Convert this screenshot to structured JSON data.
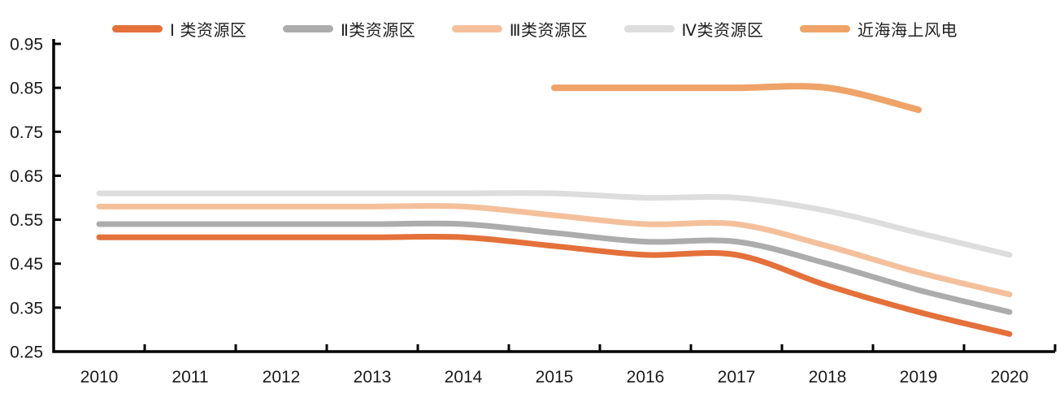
{
  "chart_data": {
    "type": "line",
    "title": "",
    "xlabel": "",
    "ylabel": "",
    "categories": [
      "2010",
      "2011",
      "2012",
      "2013",
      "2014",
      "2015",
      "2016",
      "2017",
      "2018",
      "2019",
      "2020"
    ],
    "series": [
      {
        "name": "Ⅰ 类资源区",
        "color": "#E4703A",
        "width": 7,
        "values": [
          0.51,
          0.51,
          0.51,
          0.51,
          0.51,
          0.49,
          0.47,
          0.47,
          0.4,
          0.34,
          0.29
        ]
      },
      {
        "name": "Ⅱ类资源区",
        "color": "#ACACAC",
        "width": 7,
        "values": [
          0.54,
          0.54,
          0.54,
          0.54,
          0.54,
          0.52,
          0.5,
          0.5,
          0.45,
          0.39,
          0.34
        ]
      },
      {
        "name": "Ⅲ类资源区",
        "color": "#F4C09B",
        "width": 7,
        "values": [
          0.58,
          0.58,
          0.58,
          0.58,
          0.58,
          0.56,
          0.54,
          0.54,
          0.49,
          0.43,
          0.38
        ]
      },
      {
        "name": "Ⅳ类资源区",
        "color": "#DDDDDD",
        "width": 7,
        "values": [
          0.61,
          0.61,
          0.61,
          0.61,
          0.61,
          0.61,
          0.6,
          0.6,
          0.57,
          0.52,
          0.47
        ]
      },
      {
        "name": "近海海上风电",
        "color": "#EFA368",
        "width": 8,
        "values": [
          null,
          null,
          null,
          null,
          null,
          0.85,
          0.85,
          0.85,
          0.85,
          0.8,
          null
        ]
      }
    ],
    "ylim": [
      0.25,
      0.95
    ],
    "yticks": [
      0.25,
      0.35,
      0.45,
      0.55,
      0.65,
      0.75,
      0.85,
      0.95
    ],
    "grid": false,
    "legend_position": "top",
    "line_style": "smooth",
    "axis_color": "#000000",
    "tick_label_color": "#1a1a1a"
  }
}
